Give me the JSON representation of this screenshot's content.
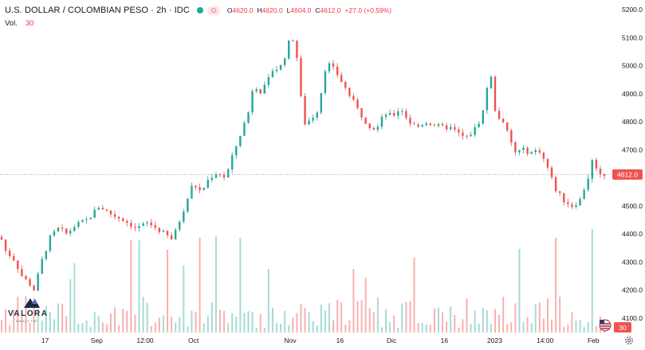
{
  "header": {
    "symbol_title": "U.S. DOLLAR / COLOMBIAN PESO · 2h · IDC",
    "market_status": "open",
    "ohlc": {
      "open_label": "O",
      "open": "4620.0",
      "high_label": "H",
      "high": "4620.0",
      "low_label": "L",
      "low": "4604.0",
      "close_label": "C",
      "close": "4612.0",
      "change": "+27.0 (+0.59%)"
    }
  },
  "volume_legend": {
    "label": "Vol.",
    "value": "30"
  },
  "price_axis": {
    "ticks": [
      "5200.0",
      "5100.0",
      "5000.0",
      "4900.0",
      "4800.0",
      "4700.0",
      "4600.0",
      "4500.0",
      "4400.0",
      "4300.0",
      "4200.0",
      "4100.0"
    ],
    "last_price_label": "4612.0",
    "last_volume_label": "30"
  },
  "time_axis": {
    "ticks": [
      "17",
      "Sep",
      "12:00",
      "Oct",
      "Nov",
      "16",
      "Dic",
      "16",
      "2023",
      "14:00",
      "Feb"
    ]
  },
  "colors": {
    "up": "#26a69a",
    "down": "#ef5350",
    "volume_up": "#a6dbd5",
    "volume_down": "#f7b2b0",
    "last_price": "#ef5350"
  },
  "logo": {
    "name": "VALORA",
    "subtitle": "ANALYTIK",
    "icon": "valora-mark-icon"
  },
  "settings": {
    "icon": "gear-icon"
  },
  "chart_data": {
    "type": "candlestick",
    "title": "U.S. DOLLAR / COLOMBIAN PESO · 2h · IDC",
    "ylim": [
      4080,
      5220
    ],
    "x": [
      "17",
      "Sep",
      "12:00",
      "Oct",
      "Nov",
      "16",
      "Dic",
      "16",
      "2023",
      "14:00",
      "Feb"
    ],
    "close_path": [
      [
        0,
        4380
      ],
      [
        1,
        4340
      ],
      [
        3,
        4310
      ],
      [
        5,
        4250
      ],
      [
        7,
        4220
      ],
      [
        8,
        4200
      ],
      [
        10,
        4310
      ],
      [
        12,
        4390
      ],
      [
        14,
        4420
      ],
      [
        16,
        4400
      ],
      [
        18,
        4430
      ],
      [
        21,
        4450
      ],
      [
        24,
        4500
      ],
      [
        27,
        4470
      ],
      [
        30,
        4450
      ],
      [
        33,
        4420
      ],
      [
        36,
        4440
      ],
      [
        39,
        4410
      ],
      [
        42,
        4380
      ],
      [
        45,
        4500
      ],
      [
        47,
        4580
      ],
      [
        49,
        4550
      ],
      [
        51,
        4600
      ],
      [
        53,
        4620
      ],
      [
        55,
        4600
      ],
      [
        57,
        4690
      ],
      [
        59,
        4770
      ],
      [
        61,
        4850
      ],
      [
        62,
        4960
      ],
      [
        63,
        4900
      ],
      [
        65,
        4930
      ],
      [
        67,
        5000
      ],
      [
        68,
        4980
      ],
      [
        70,
        5050
      ],
      [
        71,
        5110
      ],
      [
        72,
        5080
      ],
      [
        73,
        4980
      ],
      [
        74,
        4790
      ],
      [
        76,
        4810
      ],
      [
        78,
        4850
      ],
      [
        79,
        4970
      ],
      [
        80,
        5010
      ],
      [
        82,
        4980
      ],
      [
        84,
        4930
      ],
      [
        86,
        4880
      ],
      [
        88,
        4830
      ],
      [
        90,
        4790
      ],
      [
        92,
        4770
      ],
      [
        94,
        4830
      ],
      [
        96,
        4820
      ],
      [
        98,
        4850
      ],
      [
        100,
        4800
      ],
      [
        102,
        4780
      ],
      [
        104,
        4800
      ],
      [
        106,
        4790
      ],
      [
        108,
        4780
      ],
      [
        110,
        4780
      ],
      [
        112,
        4760
      ],
      [
        114,
        4740
      ],
      [
        116,
        4770
      ],
      [
        118,
        4820
      ],
      [
        119,
        4910
      ],
      [
        120,
        4980
      ],
      [
        121,
        4850
      ],
      [
        122,
        4820
      ],
      [
        124,
        4770
      ],
      [
        126,
        4690
      ],
      [
        128,
        4700
      ],
      [
        130,
        4690
      ],
      [
        132,
        4700
      ],
      [
        134,
        4640
      ],
      [
        136,
        4560
      ],
      [
        138,
        4520
      ],
      [
        140,
        4500
      ],
      [
        142,
        4520
      ],
      [
        144,
        4600
      ],
      [
        145,
        4660
      ],
      [
        146,
        4640
      ],
      [
        147,
        4610
      ],
      [
        148,
        4612
      ]
    ],
    "series": [
      {
        "name": "Vol.",
        "last_value": 30
      }
    ],
    "last_price": 4612.0,
    "grid": false,
    "legend": "top-left"
  }
}
